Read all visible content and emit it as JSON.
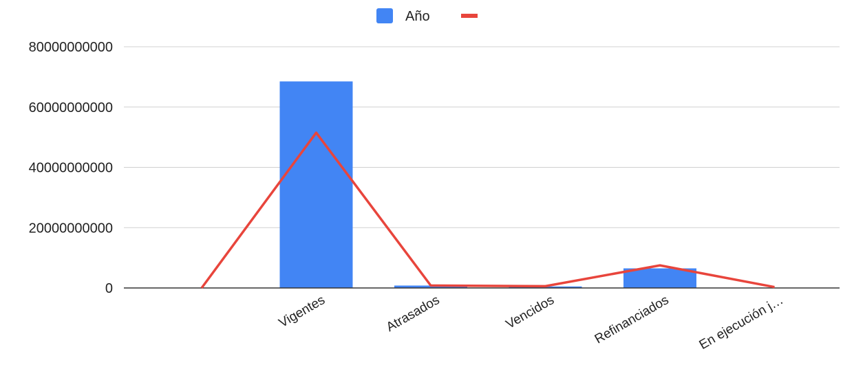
{
  "colors": {
    "bar": "#4285f4",
    "line": "#e8453c",
    "grid": "#d0d0d0",
    "axis": "#333333",
    "text": "#222222"
  },
  "legend": {
    "position": "top",
    "items": [
      {
        "label": "Año",
        "color": "#4285f4",
        "shape": "square"
      },
      {
        "label": "",
        "color": "#e8453c",
        "shape": "line"
      }
    ]
  },
  "chart_data": {
    "type": "bar",
    "categories": [
      "",
      "Vigentes",
      "Atrasados",
      "Vencidos",
      "Refinanciados",
      "En ejecución j…"
    ],
    "series": [
      {
        "name": "Año",
        "type": "bar",
        "values": [
          0,
          68500000000,
          800000000,
          500000000,
          6500000000,
          0
        ]
      },
      {
        "name": "",
        "type": "line",
        "values": [
          0,
          51500000000,
          800000000,
          600000000,
          7500000000,
          300000000
        ]
      }
    ],
    "yticks": [
      "0",
      "20000000000",
      "40000000000",
      "60000000000",
      "80000000000"
    ],
    "ylim": [
      0,
      80000000000
    ],
    "grid": true,
    "xlabel": "",
    "ylabel": ""
  }
}
